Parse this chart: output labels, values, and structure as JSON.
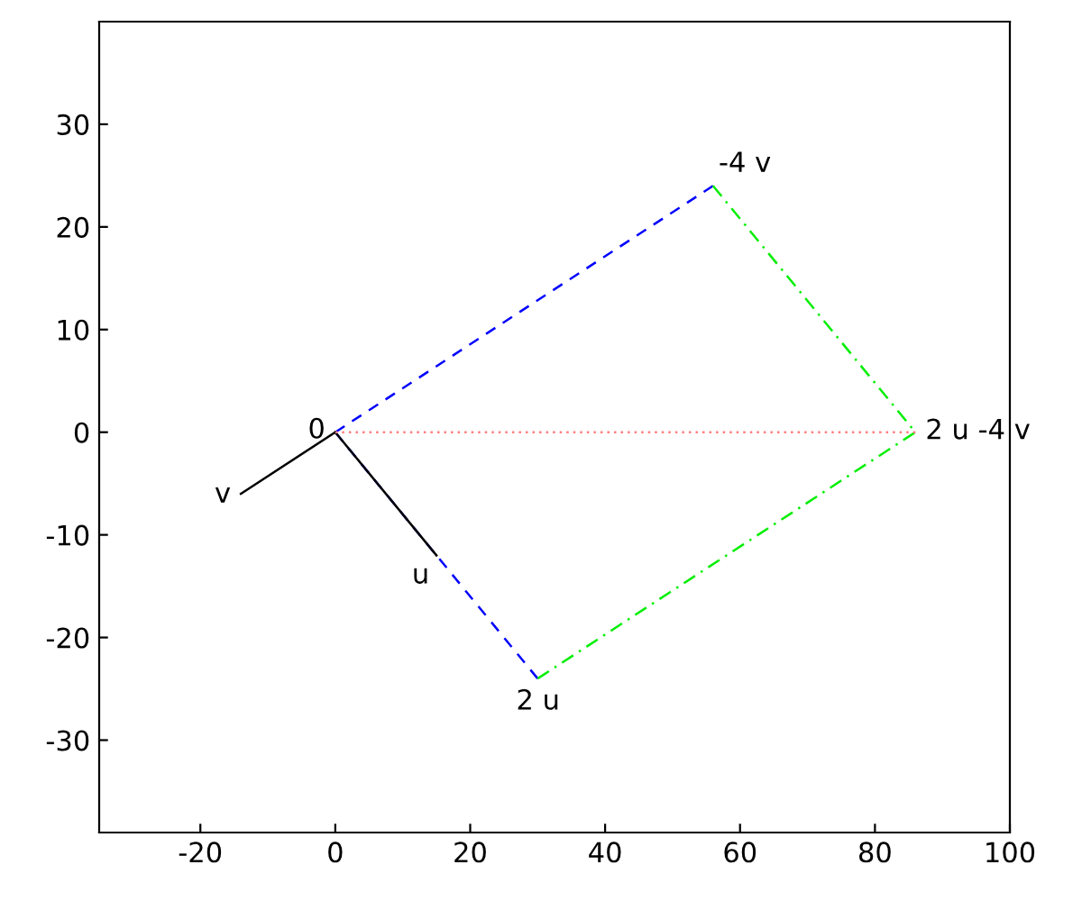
{
  "chart_data": {
    "type": "line",
    "xlim": [
      -35,
      100
    ],
    "ylim": [
      -39,
      40
    ],
    "xticks": [
      -20,
      0,
      20,
      40,
      60,
      80,
      100
    ],
    "yticks": [
      -30,
      -20,
      -10,
      0,
      10,
      20,
      30
    ],
    "grid": false,
    "legend": false,
    "marker": "none",
    "series": [
      {
        "color": "#0000ff",
        "line_style": "dashed",
        "x": [
          0,
          56
        ],
        "values": [
          0,
          24
        ]
      },
      {
        "color": "#0000ff",
        "line_style": "dashed",
        "x": [
          0,
          30
        ],
        "values": [
          0,
          -24
        ]
      },
      {
        "color": "#00ee00",
        "line_style": "dashdot",
        "x": [
          30,
          86,
          56
        ],
        "values": [
          -24,
          0,
          24
        ]
      },
      {
        "color": "#000000",
        "line_style": "solid",
        "x": [
          0,
          15
        ],
        "values": [
          0,
          -12
        ]
      },
      {
        "color": "#000000",
        "line_style": "solid",
        "x": [
          0,
          -14
        ],
        "values": [
          0,
          -6
        ]
      },
      {
        "color": "#ff8080",
        "line_style": "dotted",
        "x": [
          0,
          86
        ],
        "values": [
          0,
          0
        ]
      }
    ],
    "annotations": [
      {
        "text": "0",
        "x": 0,
        "y": 0
      },
      {
        "text": "u",
        "x": 15,
        "y": -12
      },
      {
        "text": "v",
        "x": -14,
        "y": -6
      },
      {
        "text": "2 u",
        "x": 30,
        "y": -24
      },
      {
        "text": "-4 v",
        "x": 56,
        "y": 24
      },
      {
        "text": "2 u -4 v",
        "x": 86,
        "y": 0
      }
    ]
  }
}
